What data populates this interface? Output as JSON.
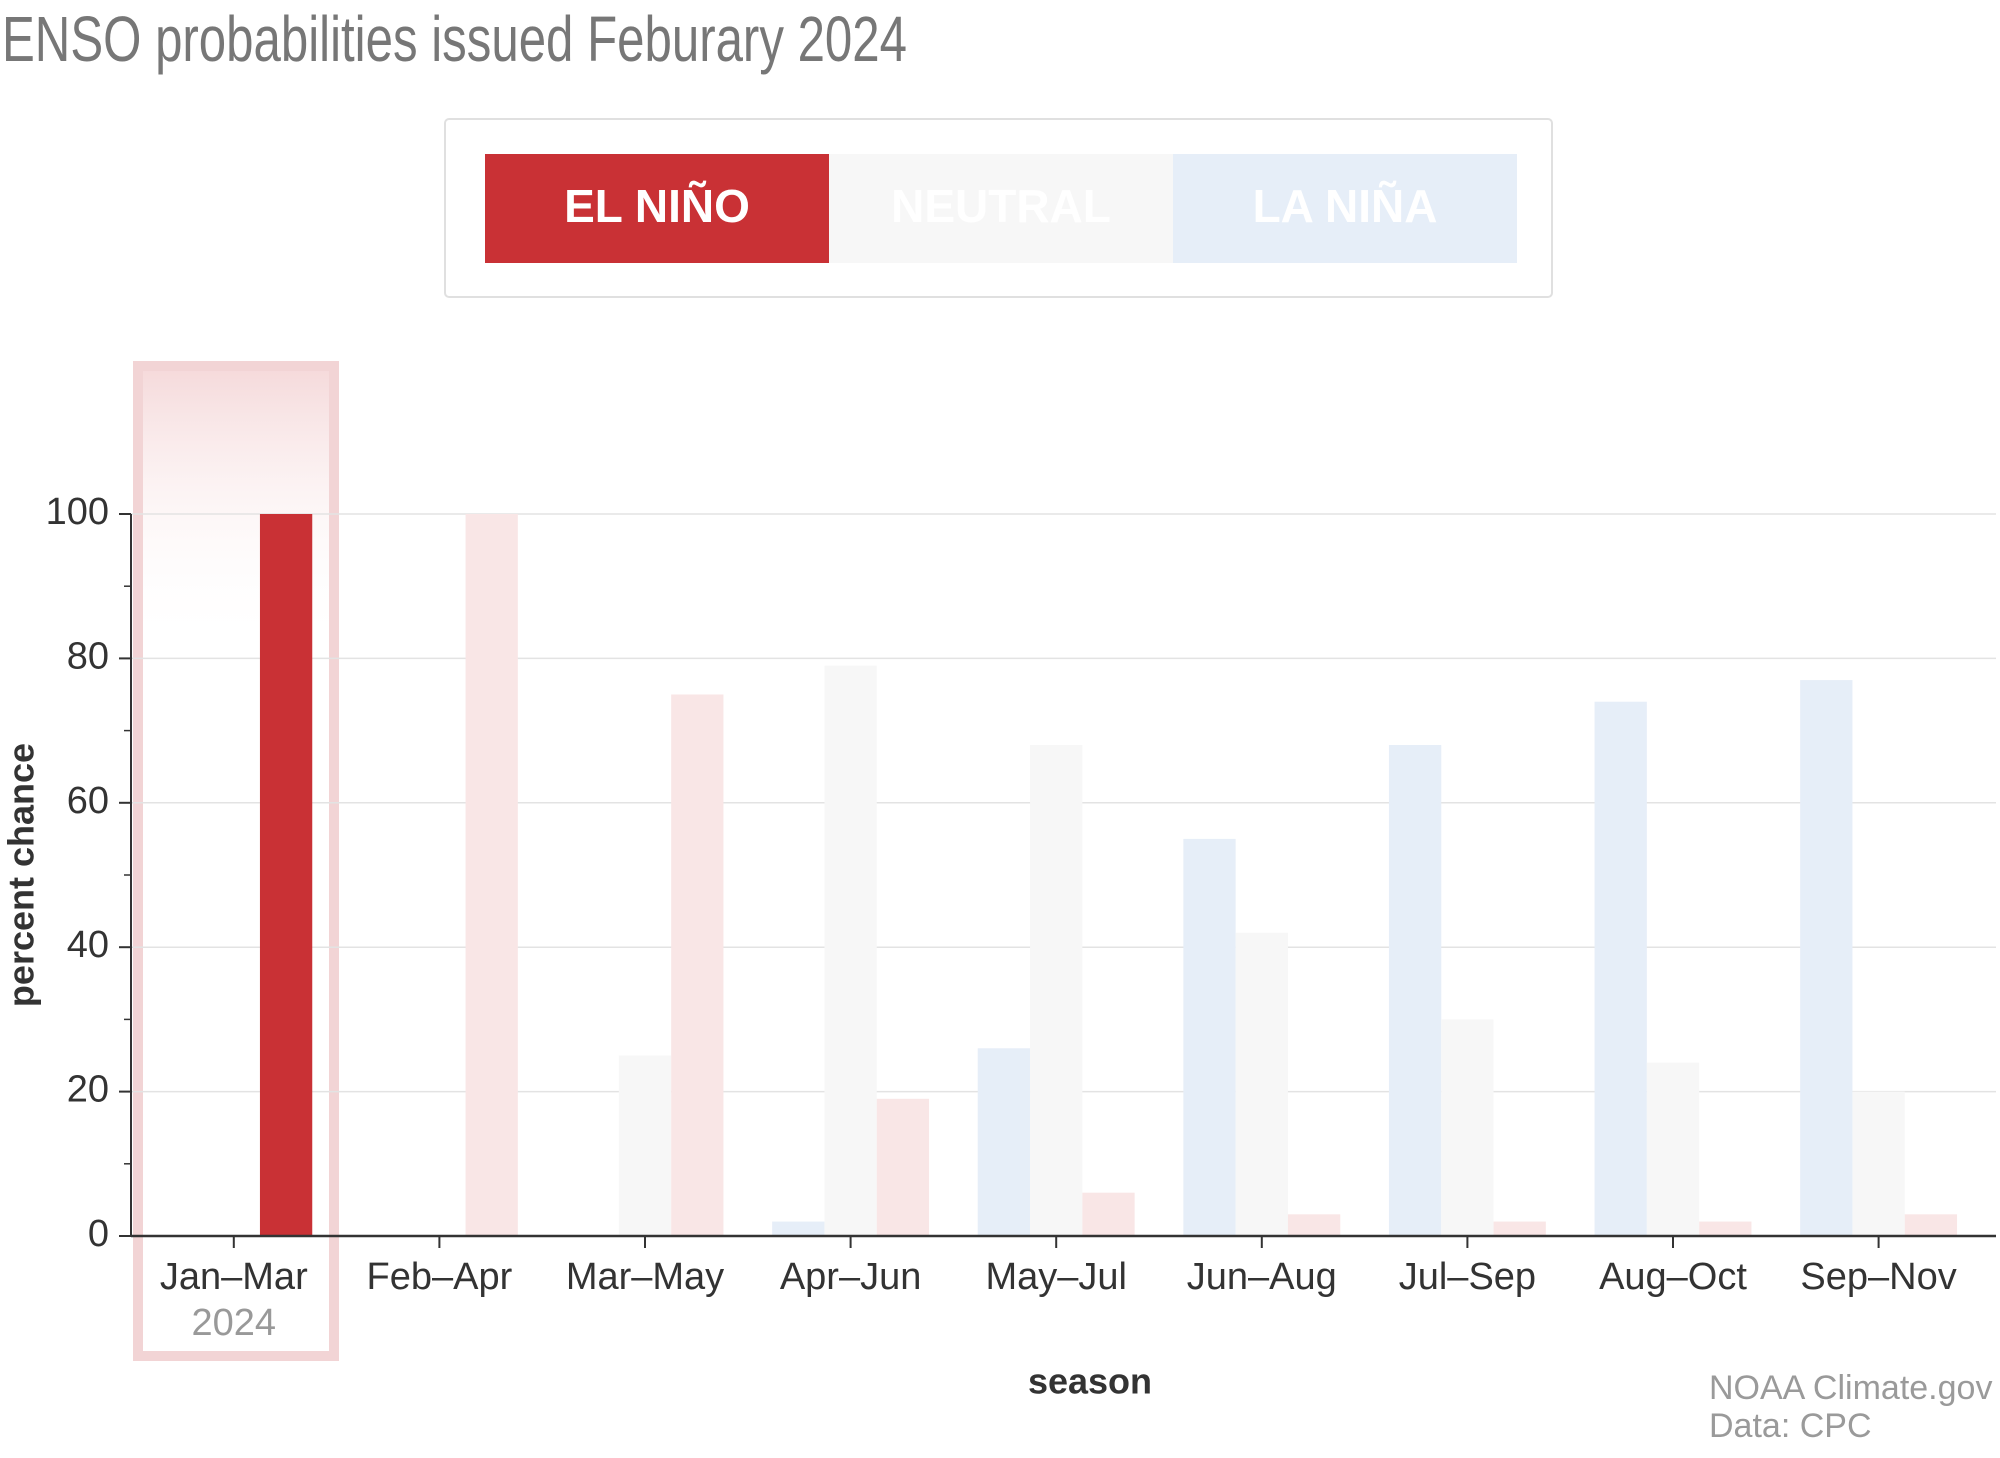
{
  "chart_data": {
    "type": "bar",
    "title": "ENSO probabilities issued Feburary 2024",
    "x_label": "season",
    "y_label": "percent chance",
    "categories": [
      "Jan–Mar",
      "Feb–Apr",
      "Mar–May",
      "Apr–Jun",
      "May–Jul",
      "Jun–Aug",
      "Jul–Sep",
      "Aug–Oct",
      "Sep–Nov"
    ],
    "first_category_year": "2024",
    "series": [
      {
        "name": "LA NIÑA",
        "colors": [
          "#e6eef8",
          "#e6eef8",
          "#e6eef8",
          "#e6eef8",
          "#e6eef8",
          "#e6eef8",
          "#e6eef8",
          "#e6eef8",
          "#e6eef8"
        ],
        "values": [
          0,
          0,
          0,
          2,
          26,
          55,
          68,
          74,
          77
        ]
      },
      {
        "name": "NEUTRAL",
        "colors": [
          "#f7f7f7",
          "#f7f7f7",
          "#f7f7f7",
          "#f7f7f7",
          "#f7f7f7",
          "#f7f7f7",
          "#f7f7f7",
          "#f7f7f7",
          "#f7f7f7"
        ],
        "values": [
          0,
          0,
          25,
          79,
          68,
          42,
          30,
          24,
          20
        ]
      },
      {
        "name": "EL NIÑO",
        "colors": [
          "#c93135",
          "#f9e6e6",
          "#f9e6e6",
          "#f9e6e6",
          "#f9e6e6",
          "#f9e6e6",
          "#f9e6e6",
          "#f9e6e6",
          "#f9e6e6"
        ],
        "values": [
          100,
          100,
          75,
          19,
          6,
          3,
          2,
          2,
          3
        ]
      }
    ],
    "ylim": [
      0,
      100
    ],
    "yticks": [
      0,
      20,
      40,
      60,
      80,
      100
    ],
    "yminorticks": [
      10,
      30,
      50,
      70,
      90
    ],
    "grid": true,
    "source": [
      "NOAA Climate.gov",
      "Data: CPC"
    ]
  }
}
